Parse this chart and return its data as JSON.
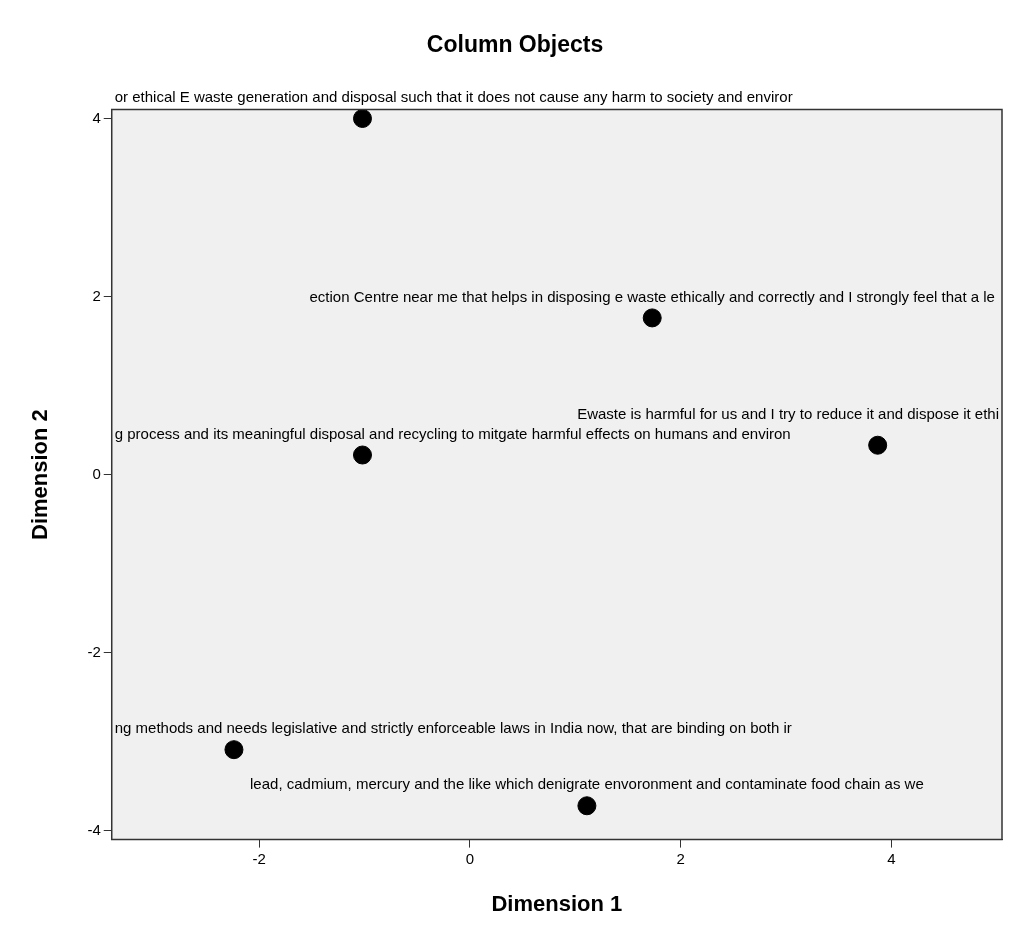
{
  "chart_data": {
    "type": "scatter",
    "title": "Column Objects",
    "xlabel": "Dimension 1",
    "ylabel": "Dimension 2",
    "x": [
      -1.02,
      1.73,
      -1.02,
      3.87,
      -2.24,
      1.11
    ],
    "values": [
      4.0,
      1.76,
      0.22,
      0.33,
      -3.09,
      -3.72
    ],
    "color": "#000000",
    "marker": "circle",
    "xlim": [
      -3.4,
      5.05
    ],
    "ylim": [
      -4.1,
      4.1
    ],
    "xticks": [
      -2,
      0,
      2,
      4
    ],
    "yticks": [
      -4,
      -2,
      0,
      2,
      4
    ],
    "annotations": [
      {
        "text": "or ethical E waste generation and disposal such that it does not cause any harm to society and enviror",
        "x": -1.02,
        "y": 4.0
      },
      {
        "text": "ection Centre near me that helps in disposing e waste ethically and correctly and I strongly feel that a le",
        "x": 1.73,
        "y": 1.76
      },
      {
        "text": "g process and its meaningful disposal and recycling to mitgate harmful effects on humans and environ",
        "x": -1.02,
        "y": 0.22
      },
      {
        "text": "Ewaste is harmful for us and I try to reduce it and dispose it ethi",
        "x": 3.87,
        "y": 0.33
      },
      {
        "text": "ng methods and needs legislative and strictly enforceable laws in India now, that are binding on both ir",
        "x": -2.24,
        "y": -3.09
      },
      {
        "text": "lead, cadmium, mercury and the like which denigrate envoronment and contaminate food chain as we",
        "x": 1.11,
        "y": -3.72
      }
    ]
  }
}
